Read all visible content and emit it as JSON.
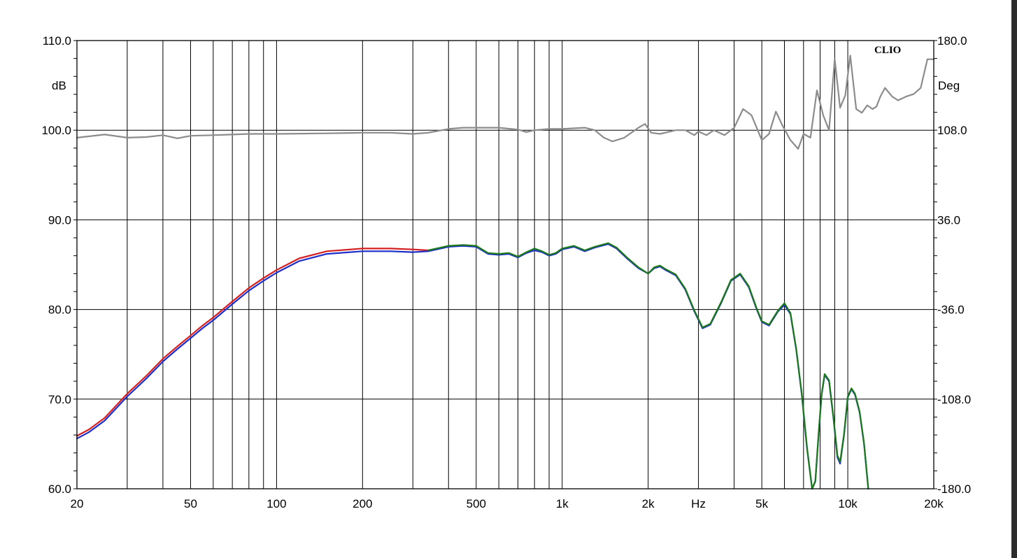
{
  "chart_data": {
    "type": "line",
    "title": "",
    "brand": "CLIO",
    "xlabel": "Hz",
    "ylabel_left": "dB",
    "ylabel_right": "Deg",
    "x_scale": "log",
    "xlim": [
      20,
      20000
    ],
    "ylim_left": [
      60,
      110
    ],
    "ylim_right": [
      -180,
      180
    ],
    "grid": true,
    "legend": "none",
    "x_ticks": [
      {
        "value": 20,
        "label": "20"
      },
      {
        "value": 50,
        "label": "50"
      },
      {
        "value": 100,
        "label": "100"
      },
      {
        "value": 200,
        "label": "200"
      },
      {
        "value": 500,
        "label": "500"
      },
      {
        "value": 1000,
        "label": "1k"
      },
      {
        "value": 2000,
        "label": "2k"
      },
      {
        "value": 3000,
        "label": "Hz"
      },
      {
        "value": 5000,
        "label": "5k"
      },
      {
        "value": 10000,
        "label": "10k"
      },
      {
        "value": 20000,
        "label": "20k"
      }
    ],
    "y_ticks_left": [
      {
        "value": 110,
        "label": "110.0"
      },
      {
        "value": 100,
        "label": "100.0"
      },
      {
        "value": 90,
        "label": "90.0"
      },
      {
        "value": 80,
        "label": "80.0"
      },
      {
        "value": 70,
        "label": "70.0"
      },
      {
        "value": 60,
        "label": "60.0"
      }
    ],
    "y_ticks_right": [
      {
        "value": 180,
        "label": "180.0"
      },
      {
        "value": 108,
        "label": "108.0"
      },
      {
        "value": 36,
        "label": "36.0"
      },
      {
        "value": -36,
        "label": "-36.0"
      },
      {
        "value": -108,
        "label": "-108.0"
      },
      {
        "value": -180,
        "label": "-180.0"
      }
    ],
    "series": [
      {
        "axis": "left",
        "color": "#d42020",
        "width": 2.2,
        "points": [
          [
            20,
            65.9
          ],
          [
            22,
            66.6
          ],
          [
            25,
            67.9
          ],
          [
            30,
            70.6
          ],
          [
            35,
            72.6
          ],
          [
            40,
            74.5
          ],
          [
            45,
            75.9
          ],
          [
            50,
            77.1
          ],
          [
            55,
            78.2
          ],
          [
            60,
            79.1
          ],
          [
            70,
            80.9
          ],
          [
            80,
            82.4
          ],
          [
            90,
            83.5
          ],
          [
            100,
            84.4
          ],
          [
            120,
            85.7
          ],
          [
            150,
            86.5
          ],
          [
            200,
            86.8
          ],
          [
            250,
            86.8
          ],
          [
            300,
            86.7
          ],
          [
            340,
            86.6
          ]
        ]
      },
      {
        "axis": "left",
        "color": "#1e2ec8",
        "width": 2.2,
        "points": [
          [
            20,
            65.6
          ],
          [
            22,
            66.3
          ],
          [
            25,
            67.6
          ],
          [
            30,
            70.3
          ],
          [
            35,
            72.3
          ],
          [
            40,
            74.2
          ],
          [
            45,
            75.6
          ],
          [
            50,
            76.8
          ],
          [
            55,
            77.9
          ],
          [
            60,
            78.8
          ],
          [
            70,
            80.6
          ],
          [
            80,
            82.1
          ],
          [
            90,
            83.2
          ],
          [
            100,
            84.1
          ],
          [
            120,
            85.4
          ],
          [
            150,
            86.2
          ],
          [
            200,
            86.5
          ],
          [
            250,
            86.5
          ],
          [
            300,
            86.4
          ],
          [
            340,
            86.5
          ],
          [
            400,
            87.0
          ],
          [
            450,
            87.1
          ],
          [
            500,
            87.0
          ],
          [
            550,
            86.2
          ],
          [
            600,
            86.1
          ],
          [
            650,
            86.2
          ],
          [
            700,
            85.8
          ],
          [
            750,
            86.3
          ],
          [
            800,
            86.6
          ],
          [
            850,
            86.4
          ],
          [
            900,
            86.0
          ],
          [
            950,
            86.2
          ],
          [
            1000,
            86.7
          ],
          [
            1100,
            87.0
          ],
          [
            1200,
            86.5
          ],
          [
            1300,
            86.9
          ],
          [
            1450,
            87.3
          ],
          [
            1550,
            86.8
          ],
          [
            1700,
            85.6
          ],
          [
            1850,
            84.6
          ],
          [
            2000,
            84.0
          ],
          [
            2100,
            84.6
          ],
          [
            2200,
            84.8
          ],
          [
            2300,
            84.4
          ],
          [
            2500,
            83.8
          ],
          [
            2700,
            82.2
          ],
          [
            2900,
            79.8
          ],
          [
            3100,
            77.9
          ],
          [
            3300,
            78.3
          ],
          [
            3600,
            80.7
          ],
          [
            3900,
            83.2
          ],
          [
            4200,
            83.9
          ],
          [
            4500,
            82.5
          ],
          [
            4800,
            80.0
          ],
          [
            5000,
            78.6
          ],
          [
            5300,
            78.2
          ],
          [
            5700,
            79.8
          ],
          [
            6000,
            80.5
          ],
          [
            6300,
            79.5
          ],
          [
            6600,
            75.5
          ],
          [
            6900,
            70.5
          ],
          [
            7200,
            64.5
          ],
          [
            7500,
            60.0
          ],
          [
            7700,
            60.8
          ],
          [
            7900,
            66.0
          ],
          [
            8100,
            70.5
          ],
          [
            8300,
            72.7
          ],
          [
            8600,
            72.0
          ],
          [
            8900,
            68.0
          ],
          [
            9200,
            63.5
          ],
          [
            9400,
            62.8
          ],
          [
            9700,
            66.0
          ],
          [
            10000,
            70.2
          ],
          [
            10300,
            71.1
          ],
          [
            10600,
            70.5
          ],
          [
            11000,
            68.5
          ],
          [
            11400,
            65.0
          ],
          [
            11800,
            60.0
          ]
        ]
      },
      {
        "axis": "left",
        "color": "#1c7a1c",
        "width": 2.2,
        "points": [
          [
            340,
            86.6
          ],
          [
            400,
            87.1
          ],
          [
            450,
            87.2
          ],
          [
            500,
            87.1
          ],
          [
            550,
            86.3
          ],
          [
            600,
            86.2
          ],
          [
            650,
            86.3
          ],
          [
            700,
            85.9
          ],
          [
            750,
            86.4
          ],
          [
            800,
            86.8
          ],
          [
            850,
            86.5
          ],
          [
            900,
            86.1
          ],
          [
            950,
            86.3
          ],
          [
            1000,
            86.8
          ],
          [
            1100,
            87.1
          ],
          [
            1200,
            86.6
          ],
          [
            1300,
            87.0
          ],
          [
            1450,
            87.4
          ],
          [
            1550,
            86.9
          ],
          [
            1700,
            85.7
          ],
          [
            1850,
            84.7
          ],
          [
            2000,
            84.0
          ],
          [
            2100,
            84.7
          ],
          [
            2200,
            84.9
          ],
          [
            2300,
            84.5
          ],
          [
            2500,
            83.9
          ],
          [
            2700,
            82.3
          ],
          [
            2900,
            79.9
          ],
          [
            3100,
            78.0
          ],
          [
            3300,
            78.4
          ],
          [
            3600,
            80.8
          ],
          [
            3900,
            83.3
          ],
          [
            4200,
            84.0
          ],
          [
            4500,
            82.6
          ],
          [
            4800,
            80.1
          ],
          [
            5000,
            78.7
          ],
          [
            5300,
            78.3
          ],
          [
            5700,
            79.9
          ],
          [
            6000,
            80.7
          ],
          [
            6300,
            79.6
          ],
          [
            6600,
            75.6
          ],
          [
            6900,
            70.6
          ],
          [
            7200,
            64.6
          ],
          [
            7500,
            60.0
          ],
          [
            7700,
            60.9
          ],
          [
            7900,
            66.1
          ],
          [
            8100,
            70.6
          ],
          [
            8300,
            72.8
          ],
          [
            8600,
            72.1
          ],
          [
            8900,
            68.1
          ],
          [
            9200,
            63.7
          ],
          [
            9400,
            63.0
          ],
          [
            9700,
            66.1
          ],
          [
            10000,
            70.3
          ],
          [
            10300,
            71.2
          ],
          [
            10600,
            70.6
          ],
          [
            11000,
            68.6
          ],
          [
            11400,
            65.1
          ],
          [
            11800,
            60.0
          ]
        ]
      },
      {
        "axis": "right",
        "color": "#8c8c8c",
        "width": 2.2,
        "points": [
          [
            20,
            102
          ],
          [
            25,
            104.5
          ],
          [
            30,
            102
          ],
          [
            35,
            102.5
          ],
          [
            40,
            104
          ],
          [
            45,
            101.5
          ],
          [
            50,
            103.5
          ],
          [
            60,
            104
          ],
          [
            70,
            104.5
          ],
          [
            80,
            105
          ],
          [
            100,
            105
          ],
          [
            150,
            105.5
          ],
          [
            200,
            106
          ],
          [
            250,
            106
          ],
          [
            300,
            105
          ],
          [
            340,
            106
          ],
          [
            400,
            109
          ],
          [
            450,
            110
          ],
          [
            500,
            110
          ],
          [
            600,
            110
          ],
          [
            700,
            108.5
          ],
          [
            750,
            106.5
          ],
          [
            800,
            108
          ],
          [
            900,
            109
          ],
          [
            1000,
            109
          ],
          [
            1200,
            110
          ],
          [
            1300,
            108
          ],
          [
            1400,
            102
          ],
          [
            1500,
            99
          ],
          [
            1650,
            102
          ],
          [
            1850,
            110
          ],
          [
            1950,
            113
          ],
          [
            2050,
            106
          ],
          [
            2200,
            105
          ],
          [
            2500,
            108
          ],
          [
            2700,
            108
          ],
          [
            2900,
            104
          ],
          [
            3000,
            107
          ],
          [
            3200,
            104
          ],
          [
            3400,
            108
          ],
          [
            3700,
            104
          ],
          [
            4000,
            110
          ],
          [
            4300,
            125
          ],
          [
            4600,
            120
          ],
          [
            5000,
            100
          ],
          [
            5300,
            105
          ],
          [
            5600,
            123
          ],
          [
            5900,
            112
          ],
          [
            6300,
            100
          ],
          [
            6700,
            93
          ],
          [
            7000,
            105
          ],
          [
            7400,
            102
          ],
          [
            7800,
            140
          ],
          [
            8200,
            120
          ],
          [
            8600,
            108
          ],
          [
            9000,
            165
          ],
          [
            9400,
            126
          ],
          [
            9800,
            136
          ],
          [
            10200,
            168
          ],
          [
            10700,
            125
          ],
          [
            11200,
            122
          ],
          [
            11700,
            128
          ],
          [
            12200,
            125
          ],
          [
            12600,
            127
          ],
          [
            13000,
            135
          ],
          [
            13500,
            142
          ],
          [
            14300,
            135
          ],
          [
            15000,
            132
          ],
          [
            16000,
            135
          ],
          [
            17000,
            137
          ],
          [
            18000,
            142
          ],
          [
            19000,
            165
          ],
          [
            20000,
            165
          ]
        ]
      }
    ]
  }
}
